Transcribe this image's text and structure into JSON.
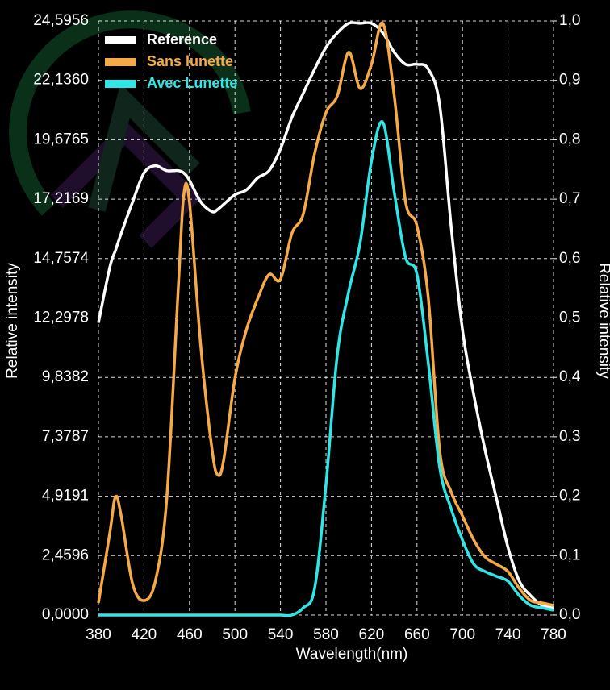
{
  "chart_data": {
    "type": "line",
    "x_label": "Wavelength(nm)",
    "y_label": "Relative intensity",
    "y2_label": "Relative intensity",
    "x": [
      380,
      390,
      395,
      400,
      410,
      420,
      430,
      440,
      450,
      455,
      460,
      470,
      480,
      485,
      490,
      500,
      510,
      520,
      530,
      540,
      550,
      560,
      570,
      580,
      590,
      600,
      610,
      620,
      630,
      640,
      650,
      660,
      670,
      680,
      690,
      700,
      710,
      720,
      730,
      740,
      750,
      760,
      770,
      780
    ],
    "xlim": [
      380,
      780
    ],
    "xticks": [
      380,
      420,
      460,
      500,
      540,
      580,
      620,
      660,
      700,
      740,
      780
    ],
    "ylim": [
      0,
      24.5956
    ],
    "yticks": [
      {
        "value": 0,
        "label": "0,0000"
      },
      {
        "value": 2.4596,
        "label": "2,4596"
      },
      {
        "value": 4.9191,
        "label": "4,9191"
      },
      {
        "value": 7.3787,
        "label": "7,3787"
      },
      {
        "value": 9.8382,
        "label": "9,8382"
      },
      {
        "value": 12.2978,
        "label": "12,2978"
      },
      {
        "value": 14.7574,
        "label": "14,7574"
      },
      {
        "value": 17.2169,
        "label": "17,2169"
      },
      {
        "value": 19.6765,
        "label": "19,6765"
      },
      {
        "value": 22.136,
        "label": "22,1360"
      },
      {
        "value": 24.5956,
        "label": "24,5956"
      }
    ],
    "y2lim": [
      0,
      1
    ],
    "y2ticks": [
      {
        "value": 0,
        "label": "0,0"
      },
      {
        "value": 0.1,
        "label": "0,1"
      },
      {
        "value": 0.2,
        "label": "0,2"
      },
      {
        "value": 0.3,
        "label": "0,3"
      },
      {
        "value": 0.4,
        "label": "0,4"
      },
      {
        "value": 0.5,
        "label": "0,5"
      },
      {
        "value": 0.6,
        "label": "0,6"
      },
      {
        "value": 0.7,
        "label": "0,7"
      },
      {
        "value": 0.8,
        "label": "0,8"
      },
      {
        "value": 0.9,
        "label": "0,9"
      },
      {
        "value": 1,
        "label": "1,0"
      }
    ],
    "grid": true,
    "series": [
      {
        "name": "Reference",
        "color": "#ffffff",
        "values": [
          12.1,
          14.4,
          15.1,
          15.8,
          17.1,
          18.3,
          18.6,
          18.4,
          18.4,
          18.3,
          18.0,
          17.1,
          16.7,
          16.8,
          17.0,
          17.4,
          17.6,
          18.1,
          18.4,
          19.3,
          20.6,
          21.6,
          22.6,
          23.5,
          24.1,
          24.5,
          24.5,
          24.5,
          24.1,
          23.3,
          22.8,
          22.8,
          22.6,
          21.1,
          16.1,
          11.8,
          9.1,
          6.8,
          4.8,
          2.8,
          1.4,
          0.8,
          0.4,
          0.3
        ]
      },
      {
        "name": "Sans lunette",
        "color": "#f5a947",
        "values": [
          0.5,
          3.4,
          4.9,
          4.1,
          1.3,
          0.6,
          1.4,
          4.8,
          13.4,
          17.4,
          17.1,
          11.1,
          6.8,
          5.8,
          6.4,
          9.8,
          11.8,
          13.1,
          14.1,
          13.9,
          15.8,
          16.6,
          19.1,
          20.8,
          21.5,
          23.3,
          21.8,
          22.8,
          24.5,
          21.5,
          17.1,
          16.1,
          13.1,
          6.8,
          5.1,
          4.1,
          3.1,
          2.4,
          2.1,
          1.8,
          1.1,
          0.6,
          0.5,
          0.4
        ]
      },
      {
        "name": "Avec Lunette",
        "color": "#2ee6e6",
        "values": [
          0,
          0,
          0,
          0,
          0,
          0,
          0,
          0,
          0,
          0,
          0,
          0,
          0,
          0,
          0,
          0,
          0,
          0,
          0,
          0,
          0,
          0.3,
          1.1,
          5.4,
          10.8,
          13.4,
          15.4,
          18.8,
          20.4,
          17.5,
          14.8,
          14.1,
          10.4,
          6.1,
          4.4,
          3.1,
          2.1,
          1.8,
          1.6,
          1.4,
          0.8,
          0.4,
          0.3,
          0.2
        ]
      }
    ]
  }
}
